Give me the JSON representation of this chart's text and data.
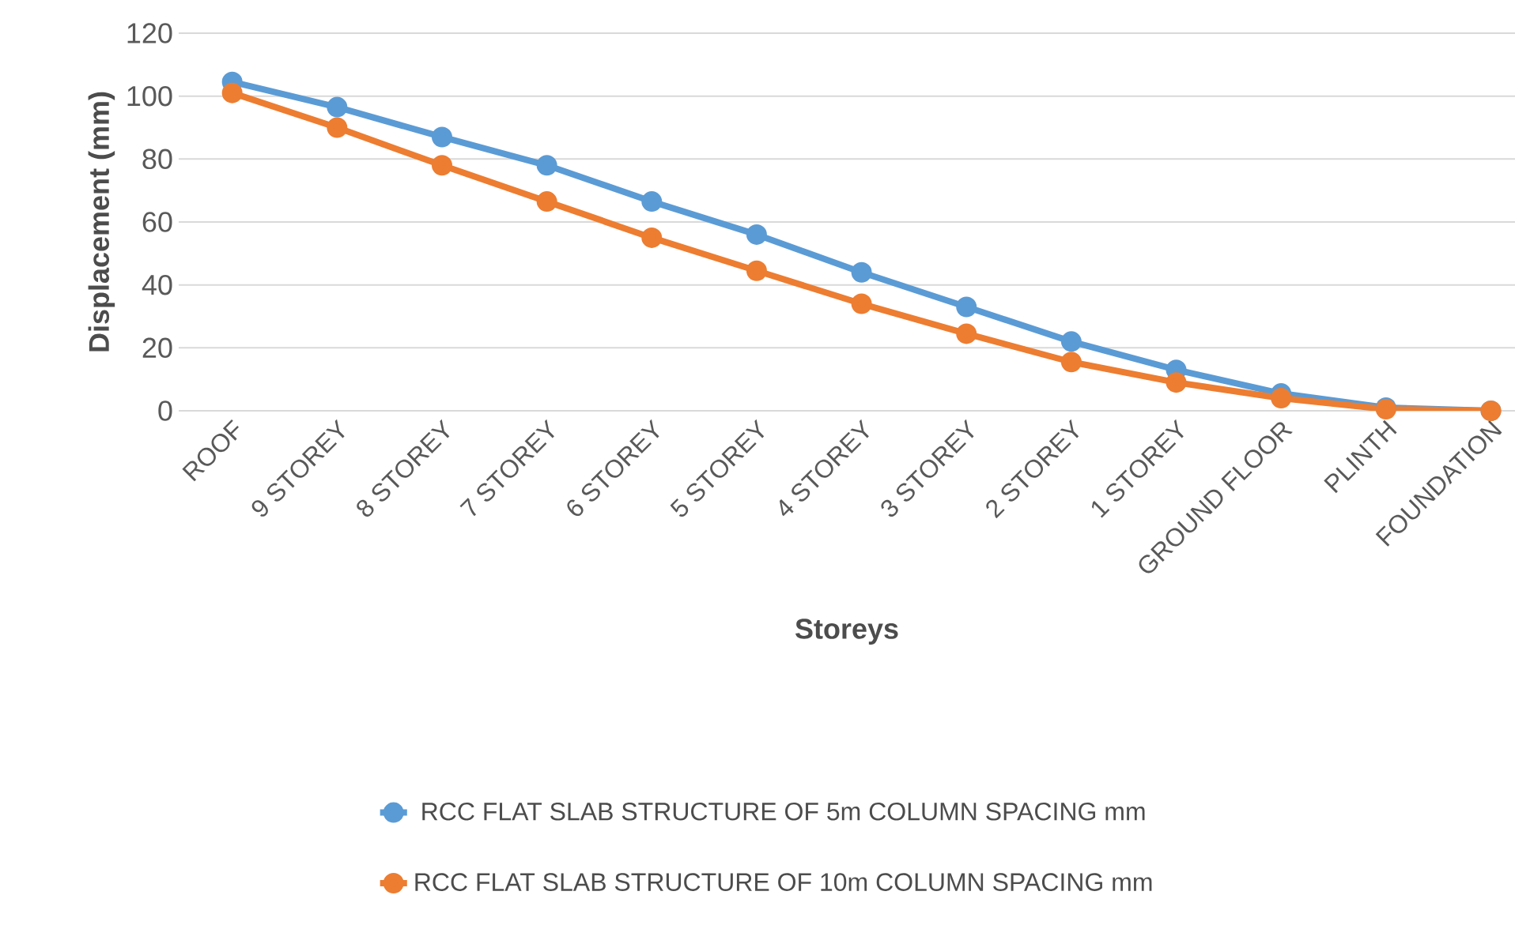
{
  "chart_data": {
    "type": "line",
    "xlabel": "Storeys",
    "ylabel": "Displacement (mm)",
    "categories": [
      "ROOF",
      "9 STOREY",
      "8 STOREY",
      "7 STOREY",
      "6 STOREY",
      "5 STOREY",
      "4 STOREY",
      "3 STOREY",
      "2 STOREY",
      "1 STOREY",
      "GROUND FLOOR",
      "PLINTH",
      "FOUNDATION"
    ],
    "series": [
      {
        "name": "RCC FLAT SLAB STRUCTURE OF 5m COLUMN SPACING mm",
        "color": "#5b9bd5",
        "values": [
          104.5,
          96.5,
          87,
          78,
          66.5,
          56,
          44,
          33,
          22,
          13,
          5.5,
          1,
          0
        ]
      },
      {
        "name": "RCC FLAT SLAB STRUCTURE OF 10m COLUMN SPACING mm",
        "color": "#ed7d31",
        "values": [
          101,
          90,
          78,
          66.5,
          55,
          44.5,
          34,
          24.5,
          15.5,
          9,
          4,
          0.5,
          0
        ]
      }
    ],
    "ylim": [
      0,
      120
    ],
    "yticks": [
      0,
      20,
      40,
      60,
      80,
      100,
      120
    ],
    "grid": "y",
    "legend": "bottom",
    "marker": "circle",
    "line_style": "solid"
  }
}
